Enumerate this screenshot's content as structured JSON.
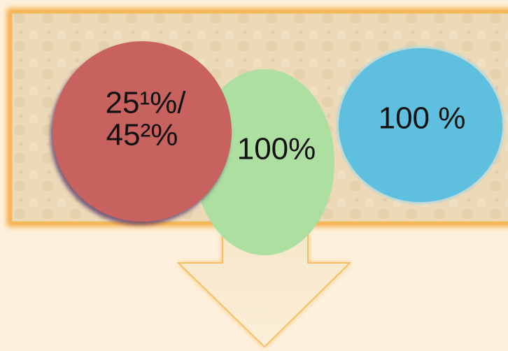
{
  "nodes": [
    {
      "lines": [
        "25¹%/",
        "45²%"
      ]
    },
    {
      "label": "100%"
    },
    {
      "label": "100 %"
    }
  ]
}
